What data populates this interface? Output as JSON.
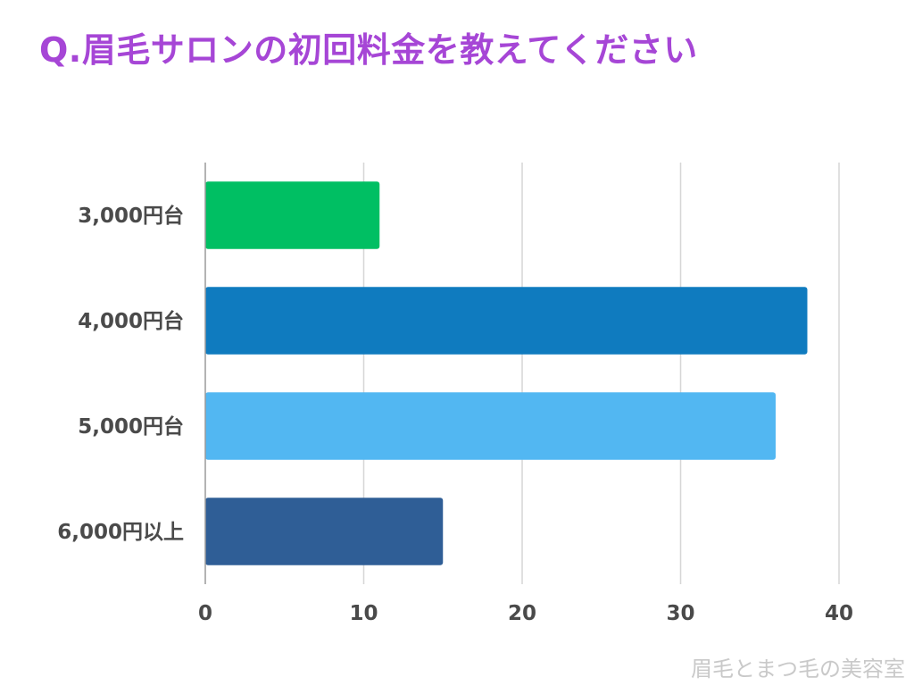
{
  "title": "Q.眉毛サロンの初回料金を教えてください",
  "watermark": "眉毛とまつ毛の美容室",
  "colors": {
    "title": "#a646d6",
    "grid": "#d6d6d6",
    "axis": "#9a9a9a",
    "label": "#4a4a4a",
    "watermark": "#c9c9c9"
  },
  "chart_data": {
    "type": "bar",
    "orientation": "horizontal",
    "title": "Q.眉毛サロンの初回料金を教えてください",
    "categories": [
      "3,000円台",
      "4,000円台",
      "5,000円台",
      "6,000円以上"
    ],
    "values": [
      11,
      38,
      36,
      15
    ],
    "bar_colors": [
      "#00bf63",
      "#0f7bbf",
      "#52b7f2",
      "#2f5e96"
    ],
    "xlim": [
      0,
      40
    ],
    "xticks": [
      0,
      10,
      20,
      30,
      40
    ],
    "xlabel": "",
    "ylabel": "",
    "grid": "vertical",
    "legend": "none"
  }
}
